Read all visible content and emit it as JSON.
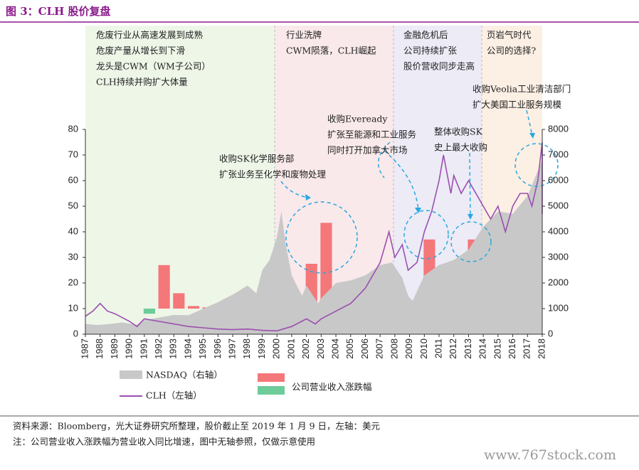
{
  "title": "图 3：CLH 股价复盘",
  "chart_data": {
    "type": "combo",
    "xlim": [
      1987,
      2018
    ],
    "xticks": [
      1987,
      1988,
      1989,
      1990,
      1991,
      1992,
      1993,
      1994,
      1995,
      1996,
      1997,
      1998,
      1999,
      2000,
      2001,
      2002,
      2003,
      2004,
      2005,
      2006,
      2007,
      2008,
      2009,
      2010,
      2011,
      2012,
      2013,
      2014,
      2015,
      2016,
      2017,
      2018
    ],
    "ylim": [
      0,
      80
    ],
    "yticks": [
      0,
      10,
      20,
      30,
      40,
      50,
      60,
      70,
      80
    ],
    "y2lim": [
      0,
      8000
    ],
    "y2ticks": [
      0,
      1000,
      2000,
      3000,
      4000,
      5000,
      6000,
      7000,
      8000
    ],
    "series": [
      {
        "name": "NASDAQ（右轴）",
        "type": "area",
        "axis": "y2",
        "color": "#c8c8c8",
        "x": [
          1987,
          1987.8,
          1988.5,
          1989.5,
          1990.5,
          1991,
          1992,
          1993,
          1994,
          1995,
          1996,
          1997,
          1998,
          1998.6,
          1999,
          1999.5,
          2000,
          2000.3,
          2000.6,
          2001,
          2001.7,
          2002,
          2002.8,
          2003,
          2004,
          2005,
          2006,
          2007,
          2007.8,
          2008.5,
          2008.9,
          2009.2,
          2010,
          2011,
          2012,
          2013,
          2014,
          2015,
          2016,
          2017,
          2018,
          2018.4,
          2018.8,
          2019
        ],
        "values": [
          400,
          360,
          390,
          460,
          370,
          550,
          650,
          750,
          740,
          1000,
          1250,
          1550,
          1900,
          1600,
          2500,
          2900,
          3800,
          4800,
          3500,
          2300,
          1500,
          1900,
          1200,
          1400,
          2000,
          2100,
          2300,
          2700,
          2800,
          2200,
          1500,
          1300,
          2300,
          2700,
          2900,
          3300,
          4200,
          4800,
          4700,
          5400,
          6800,
          7500,
          6500,
          7000
        ]
      },
      {
        "name": "CLH（左轴）",
        "type": "line",
        "axis": "y",
        "color": "#9b4fb0",
        "x": [
          1987,
          1987.5,
          1988,
          1988.5,
          1989,
          1990,
          1990.5,
          1991,
          1992,
          1993,
          1994,
          1995,
          1996,
          1997,
          1998,
          1999,
          2000,
          2001,
          2002,
          2002.6,
          2003,
          2004,
          2005,
          2006,
          2007,
          2007.6,
          2008,
          2008.5,
          2008.9,
          2009.5,
          2010,
          2010.5,
          2011,
          2011.3,
          2011.8,
          2012,
          2012.5,
          2013,
          2013.5,
          2014,
          2014.5,
          2015,
          2015.5,
          2016,
          2016.5,
          2017,
          2017.3,
          2017.7,
          2018.2,
          2018.6,
          2018.9
        ],
        "values": [
          7,
          9,
          12,
          9,
          8,
          5,
          3,
          6,
          5,
          4,
          3,
          2.5,
          2,
          1.8,
          2,
          1.5,
          1.3,
          3,
          6,
          4,
          6,
          9,
          12,
          18,
          28,
          40,
          30,
          35,
          25,
          28,
          40,
          48,
          60,
          70,
          55,
          62,
          55,
          60,
          55,
          50,
          45,
          50,
          40,
          50,
          55,
          55,
          50,
          60,
          75,
          55,
          47
        ]
      },
      {
        "name": "公司营业收入涨跌幅",
        "type": "bar",
        "axis": "y",
        "colors": {
          "up": "#f4777a",
          "down": "#6dcc9a"
        },
        "x": [
          1991,
          1992,
          1993,
          1994,
          1995,
          1996,
          1997,
          1998,
          1999,
          2000,
          2001,
          2002,
          2003,
          2004,
          2005,
          2006,
          2007,
          2008,
          2009,
          2010,
          2011,
          2012,
          2013,
          2014,
          2015,
          2016,
          2017
        ],
        "values": [
          8,
          27,
          16,
          11,
          10.5,
          7.5,
          5.5,
          13,
          11,
          16.5,
          13,
          27.5,
          43.5,
          12,
          15,
          17.5,
          16.5,
          13.5,
          11.5,
          37,
          16,
          14.5,
          37,
          8,
          7.5,
          1.5,
          12.5
        ]
      }
    ],
    "annotations": [
      [
        "危废行业从高速发展到成熟",
        "危废产量从增长到下滑",
        "龙头是CWM（WM子公司）",
        "CLH持续并购扩大体量"
      ],
      [
        "行业洗牌",
        "CWM陨落，CLH崛起"
      ],
      [
        "金融危机后",
        "公司持续扩张",
        "股价营收同步走高"
      ],
      [
        "页岩气时代",
        "公司的选择?"
      ],
      [
        "收购Veolia工业清洁部门",
        "扩大美国工业服务规模"
      ],
      [
        "收购Eveready",
        "扩张至能源和工业服务",
        "同时打开加拿大市场"
      ],
      [
        "整体收购SK",
        "史上最大收购"
      ],
      [
        "收购SK化学服务部",
        "扩张业务至化学和废物处理"
      ]
    ]
  },
  "footer": {
    "source": "资料来源：Bloomberg，光大证券研究所整理，股价截止至 2019 年 1 月 9 日，左轴：美元",
    "note": "注：公司营业收入涨跌幅为营业收入同比增速，图中无轴参照，仅做示意使用",
    "watermark": "www.767stock.com"
  }
}
